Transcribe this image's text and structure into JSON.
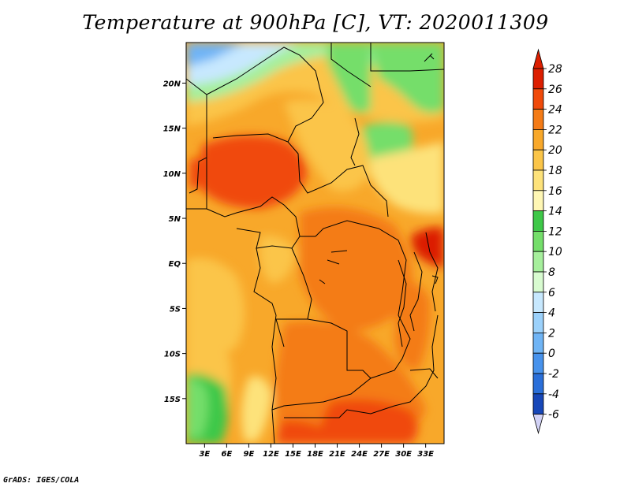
{
  "title": "Temperature at 900hPa [C], VT: 2020011309",
  "credit": "GrADS: IGES/COLA",
  "map": {
    "lat_labels": [
      "20N",
      "15N",
      "10N",
      "5N",
      "EQ",
      "5S",
      "10S",
      "15S"
    ],
    "lat_values": [
      20,
      15,
      10,
      5,
      0,
      -5,
      -10,
      -15
    ],
    "lon_labels": [
      "3E",
      "6E",
      "9E",
      "12E",
      "15E",
      "18E",
      "21E",
      "24E",
      "27E",
      "30E",
      "33E"
    ],
    "lon_values": [
      3,
      6,
      9,
      12,
      15,
      18,
      21,
      24,
      27,
      30,
      33
    ],
    "lon_range": [
      0.5,
      35.5
    ],
    "lat_range": [
      -20,
      24.5
    ]
  },
  "colorbar": {
    "labels": [
      "28",
      "26",
      "24",
      "22",
      "20",
      "18",
      "16",
      "14",
      "12",
      "10",
      "8",
      "6",
      "4",
      "2",
      "0",
      "-2",
      "-4",
      "-6"
    ],
    "colors": [
      "#dc1e00",
      "#f04a0a",
      "#f47b16",
      "#f8a82a",
      "#fbc548",
      "#fde27a",
      "#fff7b4",
      "#3ec848",
      "#74de6a",
      "#a6ef9c",
      "#d8fbd0",
      "#c7e8fe",
      "#9bd1fb",
      "#6fb4f5",
      "#4792ec",
      "#2a6fd9",
      "#1747b8",
      "#0d2a95",
      "#081673"
    ],
    "over_color": "#dc1e00",
    "under_color": "#d2d2f6"
  }
}
